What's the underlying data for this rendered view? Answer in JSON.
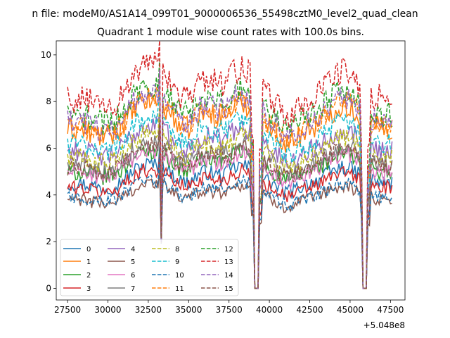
{
  "figure": {
    "suptitle": "n file: modeM0/AS1A14_099T01_9000006536_55498cztM0_level2_quad_clean",
    "offset_text": "+5.048e8"
  },
  "chart_data": {
    "type": "line",
    "title": "Quadrant 1 module wise count rates with 100.0s bins.",
    "xlabel": "",
    "ylabel": "",
    "x_offset": 504800000,
    "xlim": [
      26800,
      48400
    ],
    "ylim": [
      -0.5,
      10.6
    ],
    "x_ticks": [
      27500,
      30000,
      32500,
      35000,
      37500,
      40000,
      42500,
      45000,
      47500
    ],
    "x_tick_labels": [
      "27500",
      "30000",
      "32500",
      "35000",
      "37500",
      "40000",
      "42500",
      "45000",
      "47500"
    ],
    "y_ticks": [
      0,
      2,
      4,
      6,
      8,
      10
    ],
    "y_tick_labels": [
      "0",
      "2",
      "4",
      "6",
      "8",
      "10"
    ],
    "x_start": 27500,
    "x_step": 100,
    "x_end": 47600,
    "gaps": [
      [
        39050,
        39300
      ],
      [
        45800,
        46050
      ]
    ],
    "dropout_points": [
      [
        33250,
        2.1
      ],
      [
        33300,
        1.9
      ]
    ],
    "legend": {
      "placement": "lower-left",
      "columns": 4,
      "grid": false
    },
    "series": [
      {
        "name": "0",
        "color": "#1f77b4",
        "dash": "solid",
        "approx_level": 4.5
      },
      {
        "name": "1",
        "color": "#ff7f0e",
        "dash": "solid",
        "approx_level": 6.8
      },
      {
        "name": "2",
        "color": "#2ca02c",
        "dash": "solid",
        "approx_level": 5.0
      },
      {
        "name": "3",
        "color": "#d62728",
        "dash": "solid",
        "approx_level": 4.3
      },
      {
        "name": "4",
        "color": "#9467bd",
        "dash": "solid",
        "approx_level": 5.9
      },
      {
        "name": "5",
        "color": "#8c564b",
        "dash": "solid",
        "approx_level": 3.8
      },
      {
        "name": "6",
        "color": "#e377c2",
        "dash": "solid",
        "approx_level": 5.0
      },
      {
        "name": "7",
        "color": "#7f7f7f",
        "dash": "solid",
        "approx_level": 5.3
      },
      {
        "name": "8",
        "color": "#bcbd22",
        "dash": "dashed",
        "approx_level": 5.6
      },
      {
        "name": "9",
        "color": "#17becf",
        "dash": "dashed",
        "approx_level": 6.2
      },
      {
        "name": "10",
        "color": "#1f77b4",
        "dash": "dashed",
        "approx_level": 3.9
      },
      {
        "name": "11",
        "color": "#ff7f0e",
        "dash": "dashed",
        "approx_level": 6.9
      },
      {
        "name": "12",
        "color": "#2ca02c",
        "dash": "dashed",
        "approx_level": 7.4
      },
      {
        "name": "13",
        "color": "#d62728",
        "dash": "dashed",
        "approx_level": 8.1
      },
      {
        "name": "14",
        "color": "#9467bd",
        "dash": "dashed",
        "approx_level": 7.1
      },
      {
        "name": "15",
        "color": "#8c564b",
        "dash": "dashed",
        "approx_level": 5.2
      }
    ]
  }
}
